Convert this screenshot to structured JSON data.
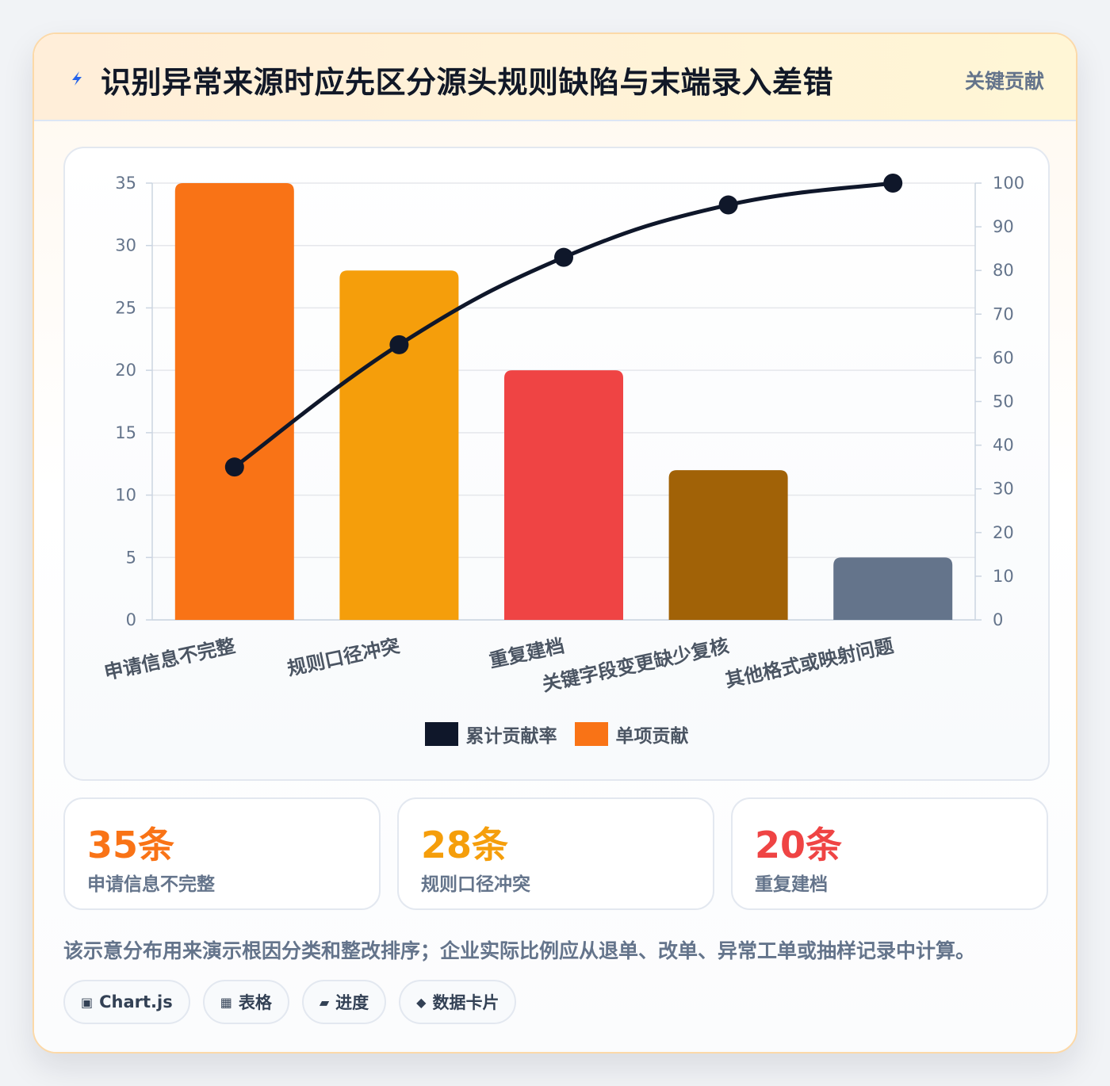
{
  "header": {
    "icon": "lightning-icon",
    "title": "识别异常来源时应先区分源头规则缺陷与末端录入差错",
    "tag": "关键贡献"
  },
  "chart_data": {
    "type": "bar",
    "categories": [
      "申请信息不完整",
      "规则口径冲突",
      "重复建档",
      "关键字段变更缺少复核",
      "其他格式或映射问题"
    ],
    "series": [
      {
        "name": "单项贡献",
        "type": "bar",
        "values": [
          35,
          28,
          20,
          12,
          5
        ],
        "colors": [
          "#f97316",
          "#f59e0b",
          "#ef4444",
          "#a16207",
          "#64748b"
        ]
      },
      {
        "name": "累计贡献率",
        "type": "line",
        "axis": "right",
        "values": [
          35,
          63,
          83,
          95,
          100
        ],
        "color": "#0f172a"
      }
    ],
    "y_left": {
      "min": 0,
      "max": 35,
      "ticks": [
        0,
        5,
        10,
        15,
        20,
        25,
        30,
        35
      ]
    },
    "y_right": {
      "min": 0,
      "max": 100,
      "ticks": [
        0,
        10,
        20,
        30,
        40,
        50,
        60,
        70,
        80,
        90,
        100
      ]
    },
    "legend": [
      {
        "label": "累计贡献率",
        "color": "#0f172a"
      },
      {
        "label": "单项贡献",
        "color": "#f97316"
      }
    ],
    "legend_position": "bottom",
    "grid": true
  },
  "stats": [
    {
      "value": "35条",
      "label": "申请信息不完整",
      "color": "#f97316"
    },
    {
      "value": "28条",
      "label": "规则口径冲突",
      "color": "#f59e0b"
    },
    {
      "value": "20条",
      "label": "重复建档",
      "color": "#ef4444"
    }
  ],
  "note": "该示意分布用来演示根因分类和整改排序；企业实际比例应从退单、改单、异常工单或抽样记录中计算。",
  "chips": [
    {
      "icon": "▣",
      "label": "Chart.js"
    },
    {
      "icon": "▦",
      "label": "表格"
    },
    {
      "icon": "▰",
      "label": "进度"
    },
    {
      "icon": "◆",
      "label": "数据卡片"
    }
  ]
}
